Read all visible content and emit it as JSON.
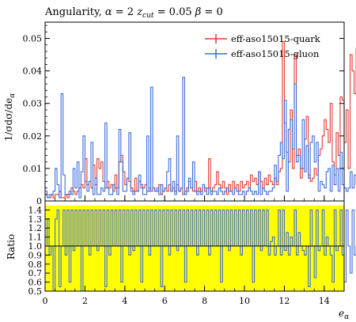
{
  "chart_data": {
    "type": "line",
    "drawstyle": "steps",
    "title": "Angularity, α = 2 z_cut = 0.05 β = 0",
    "title_parts": {
      "text": "Angularity, ",
      "alpha": "α",
      "eq1": " = 2 ",
      "z": "z",
      "cut": "cut",
      "eq2": " = 0.05 ",
      "beta": "β",
      "eq3": " = 0"
    },
    "xlabel": "e_α",
    "xlabel_parts": {
      "main": "e",
      "sub": "α"
    },
    "ylabel": "1/σ dσ/de_α",
    "ylabel_parts": {
      "main": "1/σdσ/de",
      "sub": "α"
    },
    "ratio_ylabel": "Ratio",
    "xlim": [
      0,
      15
    ],
    "ylim": [
      0,
      0.055
    ],
    "ratio_ylim": [
      0.5,
      1.5
    ],
    "x_ticks": [
      0,
      2,
      4,
      6,
      8,
      10,
      12,
      14
    ],
    "x_tick_labels": [
      "0",
      "2",
      "4",
      "6",
      "8",
      "10",
      "12",
      "14"
    ],
    "y_ticks": [
      0,
      0.01,
      0.02,
      0.03,
      0.04,
      0.05
    ],
    "y_tick_labels": [
      "0",
      "0.01",
      "0.02",
      "0.03",
      "0.04",
      "0.05"
    ],
    "ratio_ticks": [
      0.5,
      0.6,
      0.7,
      0.8,
      0.9,
      1.0,
      1.1,
      1.2,
      1.3,
      1.4
    ],
    "ratio_tick_labels": [
      "0.5",
      "0.6",
      "0.7",
      "0.8",
      "0.9",
      "1.0",
      "1.1",
      "1.2",
      "1.3",
      "1.4"
    ],
    "bin_width": 0.1,
    "legend_position": "top-right",
    "series": [
      {
        "name": "eff-aso15015-quark",
        "color": "#e03c31",
        "values": [
          0.002,
          0.001,
          0.001,
          0.002,
          0.001,
          0.002,
          0.002,
          0.003,
          0.001,
          0.001,
          0.002,
          0.001,
          0.002,
          0.004,
          0.003,
          0.002,
          0.003,
          0.004,
          0.005,
          0.004,
          0.013,
          0.005,
          0.006,
          0.004,
          0.011,
          0.005,
          0.013,
          0.01,
          0.012,
          0.006,
          0.004,
          0.006,
          0.004,
          0.005,
          0.003,
          0.008,
          0.004,
          0.012,
          0.014,
          0.009,
          0.005,
          0.007,
          0.006,
          0.004,
          0.003,
          0.007,
          0.003,
          0.006,
          0.004,
          0.004,
          0.005,
          0.003,
          0.004,
          0.003,
          0.004,
          0.003,
          0.003,
          0.005,
          0.002,
          0.003,
          0.004,
          0.003,
          0.005,
          0.003,
          0.004,
          0.003,
          0.005,
          0.003,
          0.004,
          0.002,
          0.003,
          0.004,
          0.006,
          0.004,
          0.003,
          0.006,
          0.003,
          0.004,
          0.003,
          0.005,
          0.003,
          0.004,
          0.013,
          0.003,
          0.004,
          0.005,
          0.009,
          0.005,
          0.004,
          0.006,
          0.004,
          0.002,
          0.005,
          0.003,
          0.006,
          0.004,
          0.005,
          0.003,
          0.006,
          0.004,
          0.005,
          0.006,
          0.004,
          0.008,
          0.006,
          0.007,
          0.005,
          0.009,
          0.006,
          0.004,
          0.007,
          0.005,
          0.008,
          0.006,
          0.005,
          0.007,
          0.005,
          0.009,
          0.01,
          0.049,
          0.024,
          0.015,
          0.012,
          0.028,
          0.01,
          0.045,
          0.014,
          0.016,
          0.007,
          0.01,
          0.019,
          0.026,
          0.008,
          0.006,
          0.007,
          0.01,
          0.008,
          0.014,
          0.016,
          0.02,
          0.025,
          0.022,
          0.018,
          0.03,
          0.012,
          0.008,
          0.021,
          0.014,
          0.032,
          0.031,
          0.018,
          0.028,
          0.01,
          0.045,
          0.04,
          0.033,
          0.047,
          0.03,
          0.038,
          0.049,
          0.025,
          0.028,
          0.03,
          0.016,
          0.028,
          0.022,
          0.035,
          0.028,
          0.019,
          0.022,
          0.025,
          0.016,
          0.012,
          0.01,
          0.014,
          0.009,
          0.012,
          0.01,
          0.015,
          0.008,
          0.011,
          0.006,
          0.01,
          0.007,
          0.009,
          0.008,
          0.005,
          0.006,
          0.004,
          0.005,
          0.003,
          0.004,
          0.002,
          0.003,
          0.002,
          0.002,
          0.001,
          0.002
        ]
      },
      {
        "name": "eff-aso15015-gluon",
        "color": "#3d6fdc",
        "values": [
          0.003,
          0.001,
          0.002,
          0.002,
          0.003,
          0.01,
          0.005,
          0.001,
          0.033,
          0.008,
          0.002,
          0.002,
          0.003,
          0.002,
          0.01,
          0.004,
          0.012,
          0.001,
          0.009,
          0.02,
          0.006,
          0.003,
          0.006,
          0.018,
          0.002,
          0.007,
          0.002,
          0.002,
          0.004,
          0.003,
          0.024,
          0.004,
          0.002,
          0.002,
          0.005,
          0.004,
          0.002,
          0.022,
          0.012,
          0.003,
          0.003,
          0.007,
          0.021,
          0.003,
          0.002,
          0.003,
          0.003,
          0.008,
          0.005,
          0.002,
          0.002,
          0.02,
          0.003,
          0.035,
          0.004,
          0.003,
          0.004,
          0.002,
          0.005,
          0.003,
          0.004,
          0.009,
          0.013,
          0.003,
          0.006,
          0.002,
          0.02,
          0.003,
          0.004,
          0.038,
          0.002,
          0.003,
          0.007,
          0.004,
          0.012,
          0.003,
          0.002,
          0.003,
          0.002,
          0.005,
          0.004,
          0.002,
          0.004,
          0.002,
          0.003,
          0.003,
          0.002,
          0.004,
          0.003,
          0.002,
          0.003,
          0.004,
          0.003,
          0.003,
          0.002,
          0.004,
          0.003,
          0.002,
          0.002,
          0.003,
          0.002,
          0.003,
          0.004,
          0.003,
          0.002,
          0.003,
          0.002,
          0.009,
          0.002,
          0.004,
          0.003,
          0.002,
          0.003,
          0.003,
          0.004,
          0.011,
          0.006,
          0.014,
          0.018,
          0.013,
          0.031,
          0.003,
          0.022,
          0.025,
          0.016,
          0.036,
          0.012,
          0.014,
          0.01,
          0.025,
          0.009,
          0.017,
          0.007,
          0.018,
          0.02,
          0.012,
          0.018,
          0.003,
          0.006,
          0.005,
          0.004,
          0.009,
          0.01,
          0.003,
          0.011,
          0.005,
          0.01,
          0.003,
          0.015,
          0.005,
          0.004,
          0.003,
          0.004,
          0.009,
          0.004,
          0.008,
          0.005,
          0.003,
          0.003,
          0.002,
          0.003,
          0.006,
          0.004,
          0.003,
          0.003,
          0.004,
          0.007,
          0.003,
          0.002,
          0.004,
          0.003,
          0.002,
          0.003,
          0.002,
          0.003,
          0.002,
          0.002,
          0.003,
          0.002,
          0.002,
          0.001,
          0.002,
          0.001,
          0.002,
          0.002,
          0.001,
          0.002,
          0.001,
          0.001,
          0.002,
          0.001,
          0.001,
          0.001,
          0.001,
          0.001,
          0.001,
          0.001,
          0.001
        ]
      }
    ],
    "ratio_series": {
      "name": "ratio",
      "color": "#3d6fdc",
      "band_color": "#ffff00",
      "values": [
        1.0,
        1.3,
        0.9,
        1.0,
        0.5,
        1.3,
        1.4,
        0.55,
        1.0,
        1.4,
        0.9,
        1.4,
        0.6,
        1.4,
        0.95,
        1.4,
        1.0,
        1.4,
        0.5,
        1.4,
        1.0,
        1.4,
        0.9,
        1.4,
        1.0,
        1.4,
        0.95,
        1.4,
        1.0,
        1.4,
        0.55,
        1.4,
        0.9,
        1.4,
        1.0,
        1.4,
        1.0,
        1.4,
        0.6,
        1.4,
        1.0,
        1.4,
        0.9,
        1.4,
        0.95,
        1.4,
        1.0,
        1.4,
        0.6,
        1.4,
        1.0,
        1.4,
        0.9,
        1.4,
        1.0,
        1.4,
        1.0,
        1.4,
        0.55,
        1.4,
        1.0,
        1.4,
        0.9,
        1.4,
        1.0,
        1.4,
        0.95,
        1.4,
        1.0,
        1.4,
        0.6,
        1.4,
        1.0,
        1.4,
        1.0,
        1.4,
        0.9,
        1.4,
        1.0,
        1.4,
        1.0,
        1.4,
        0.9,
        1.4,
        1.0,
        1.4,
        1.0,
        1.4,
        0.6,
        1.4,
        1.0,
        1.4,
        0.95,
        1.4,
        1.0,
        1.4,
        1.0,
        1.4,
        0.9,
        1.4,
        1.0,
        1.4,
        1.0,
        1.4,
        0.6,
        1.4,
        1.0,
        1.4,
        0.95,
        1.4,
        1.0,
        1.4,
        0.9,
        1.05,
        1.1,
        0.9,
        1.0,
        1.4,
        0.9,
        1.4,
        0.95,
        1.15,
        0.9,
        1.1,
        1.0,
        1.4,
        0.9,
        1.15,
        1.0,
        0.95,
        0.9,
        1.0,
        0.55,
        1.4,
        1.0,
        0.65,
        1.4,
        0.95,
        1.0,
        1.4,
        0.9,
        1.1,
        1.0,
        0.9,
        0.6,
        1.4,
        0.95,
        1.0,
        1.4,
        0.9,
        0.6,
        1.4,
        1.0,
        0.7,
        1.4,
        0.9,
        1.0,
        1.4,
        1.0,
        0.6,
        1.4,
        0.95,
        1.0,
        0.65,
        1.4,
        1.0,
        0.9,
        1.4,
        0.95,
        0.55,
        1.4,
        1.0,
        0.9,
        1.4,
        1.0,
        1.4,
        0.6,
        1.0,
        1.4,
        0.9,
        1.4,
        1.0,
        0.6,
        1.4,
        1.0,
        1.4,
        1.0,
        1.4,
        0.9,
        1.4,
        1.0,
        1.4,
        1.0,
        1.4,
        1.0,
        1.4,
        1.0
      ]
    }
  }
}
